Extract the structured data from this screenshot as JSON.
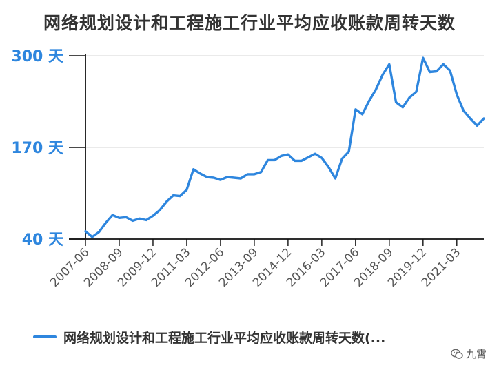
{
  "chart_data": {
    "type": "line",
    "title": "网络规划设计和工程施工行业平均应收账款周转天数",
    "xlabel": "",
    "ylabel": "",
    "ylim": [
      40,
      300
    ],
    "y_ticks": [
      40,
      170,
      300
    ],
    "y_tick_labels": [
      "40 天",
      "170 天",
      "300 天"
    ],
    "x_tick_labels": [
      "2007-06",
      "2008-09",
      "2009-12",
      "2011-03",
      "2012-06",
      "2013-09",
      "2014-12",
      "2016-03",
      "2017-06",
      "2018-09",
      "2019-12",
      "2021-03"
    ],
    "grid": true,
    "legend_position": "bottom",
    "colors": {
      "series": "#2e86de",
      "axis": "#111111",
      "grid": "#dddddd",
      "tick_label": "#2e86de",
      "title": "#333333"
    },
    "x": [
      "2007-06",
      "2007-09",
      "2007-12",
      "2008-03",
      "2008-06",
      "2008-09",
      "2008-12",
      "2009-03",
      "2009-06",
      "2009-09",
      "2009-12",
      "2010-03",
      "2010-06",
      "2010-09",
      "2010-12",
      "2011-03",
      "2011-06",
      "2011-09",
      "2011-12",
      "2012-03",
      "2012-06",
      "2012-09",
      "2012-12",
      "2013-03",
      "2013-06",
      "2013-09",
      "2013-12",
      "2014-03",
      "2014-06",
      "2014-09",
      "2014-12",
      "2015-03",
      "2015-06",
      "2015-09",
      "2015-12",
      "2016-03",
      "2016-06",
      "2016-09",
      "2016-12",
      "2017-03",
      "2017-06",
      "2017-09",
      "2017-12",
      "2018-03",
      "2018-06",
      "2018-09",
      "2018-12",
      "2019-03",
      "2019-06",
      "2019-09",
      "2019-12",
      "2020-03",
      "2020-06",
      "2020-09",
      "2020-12",
      "2021-03",
      "2021-06",
      "2021-09",
      "2021-12",
      "2022-03"
    ],
    "series": [
      {
        "name": "网络规划设计和工程施工行业平均应收账款周转天数(...",
        "values": [
          51,
          43,
          50,
          63,
          74,
          70,
          71,
          66,
          69,
          67,
          73,
          81,
          93,
          102,
          101,
          110,
          139,
          133,
          128,
          127,
          124,
          128,
          127,
          126,
          132,
          132,
          135,
          152,
          152,
          158,
          160,
          151,
          151,
          156,
          161,
          155,
          142,
          126,
          154,
          164,
          224,
          217,
          236,
          252,
          273,
          288,
          234,
          227,
          241,
          249,
          297,
          277,
          278,
          288,
          279,
          245,
          222,
          211,
          201,
          211
        ]
      }
    ]
  },
  "watermark": {
    "text": "九霄",
    "icon": "wechat-icon"
  }
}
